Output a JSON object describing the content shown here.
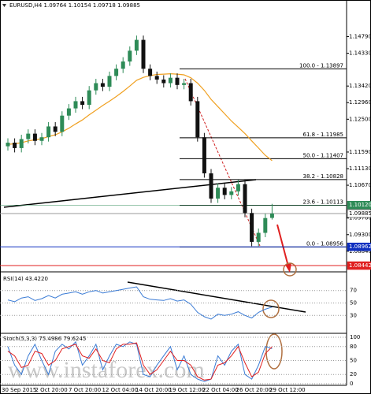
{
  "chart_data": [
    {
      "type": "candlestick",
      "title": "EURUSD,H4 1.09764 1.10154 1.09718 1.09885",
      "up_color": "#2e8b57",
      "down_color": "#111111",
      "open": [
        1.1175,
        1.1185,
        1.117,
        1.1195,
        1.121,
        1.119,
        1.12,
        1.123,
        1.1215,
        1.126,
        1.128,
        1.13,
        1.129,
        1.133,
        1.135,
        1.134,
        1.137,
        1.139,
        1.141,
        1.144,
        1.147,
        1.139,
        1.137,
        1.136,
        1.135,
        1.1365,
        1.1345,
        1.135,
        1.13,
        1.12,
        1.11,
        1.103,
        1.106,
        1.104,
        1.105,
        1.107,
        1.099,
        1.091,
        1.0935,
        1.09764
      ],
      "high": [
        1.1197,
        1.1197,
        1.1207,
        1.1222,
        1.1222,
        1.1212,
        1.1242,
        1.1242,
        1.1272,
        1.1292,
        1.1312,
        1.1312,
        1.1342,
        1.1362,
        1.1362,
        1.1382,
        1.1402,
        1.1422,
        1.1452,
        1.1482,
        1.1482,
        1.1402,
        1.1382,
        1.1372,
        1.1377,
        1.1377,
        1.1362,
        1.1362,
        1.1312,
        1.1212,
        1.1112,
        1.1072,
        1.1072,
        1.1062,
        1.1082,
        1.1082,
        1.1002,
        1.0947,
        1.0988,
        1.10154
      ],
      "low": [
        1.1163,
        1.1158,
        1.1158,
        1.1183,
        1.1178,
        1.1178,
        1.1188,
        1.1203,
        1.1203,
        1.1248,
        1.1268,
        1.1278,
        1.1278,
        1.1318,
        1.1328,
        1.1328,
        1.1358,
        1.1378,
        1.1398,
        1.1428,
        1.1378,
        1.1358,
        1.1348,
        1.1338,
        1.1338,
        1.1333,
        1.1333,
        1.1288,
        1.1188,
        1.1088,
        1.1018,
        1.1018,
        1.1028,
        1.1028,
        1.1038,
        1.0978,
        1.0898,
        1.0898,
        1.0923,
        1.09718
      ],
      "close": [
        1.1185,
        1.117,
        1.1195,
        1.121,
        1.119,
        1.12,
        1.123,
        1.1215,
        1.126,
        1.128,
        1.13,
        1.129,
        1.133,
        1.135,
        1.134,
        1.137,
        1.139,
        1.141,
        1.144,
        1.147,
        1.139,
        1.137,
        1.136,
        1.135,
        1.1365,
        1.1345,
        1.135,
        1.13,
        1.12,
        1.11,
        1.103,
        1.106,
        1.104,
        1.105,
        1.107,
        1.099,
        1.091,
        1.0935,
        1.0976,
        1.09885
      ],
      "series": [
        {
          "color": "#f0a020",
          "values": [
            1.118,
            1.1182,
            1.1185,
            1.119,
            1.1193,
            1.1196,
            1.1202,
            1.1207,
            1.1215,
            1.1225,
            1.1237,
            1.1248,
            1.1262,
            1.1275,
            1.1288,
            1.13,
            1.1313,
            1.1327,
            1.1342,
            1.1358,
            1.1366,
            1.1371,
            1.1374,
            1.1375,
            1.1376,
            1.1375,
            1.1373,
            1.1365,
            1.135,
            1.133,
            1.1305,
            1.1285,
            1.1265,
            1.1245,
            1.1228,
            1.121,
            1.119,
            1.117,
            1.115,
            1.1135
          ]
        }
      ],
      "ylim": [
        1.0829,
        1.1574
      ],
      "yticks": [
        {
          "value": 1.1479,
          "label": "1.14790"
        },
        {
          "value": 1.1433,
          "label": "1.14330"
        },
        {
          "value": 1.1342,
          "label": "1.13420"
        },
        {
          "value": 1.1296,
          "label": "1.12960"
        },
        {
          "value": 1.125,
          "label": "1.12500"
        },
        {
          "value": 1.1159,
          "label": "1.11590"
        },
        {
          "value": 1.1113,
          "label": "1.11130"
        },
        {
          "value": 1.1067,
          "label": "1.10670"
        },
        {
          "value": 1.0976,
          "label": "1.09760"
        },
        {
          "value": 1.093,
          "label": "1.09300"
        },
        {
          "value": 1.0884,
          "label": "1.08840"
        }
      ],
      "fib_levels": [
        {
          "value": 1.13897,
          "label": "100.0 - 1.13897"
        },
        {
          "value": 1.11985,
          "label": "61.8 - 1.11985"
        },
        {
          "value": 1.11407,
          "label": "50.0 - 1.11407"
        },
        {
          "value": 1.10828,
          "label": "38.2 - 1.10828"
        },
        {
          "value": 1.10113,
          "label": "23.6 - 1.10113"
        },
        {
          "value": 1.08956,
          "label": "0.0 - 1.08956"
        }
      ],
      "price_markers": [
        {
          "value": 1.1012,
          "label": "1.10120",
          "color": "#2e8b57"
        },
        {
          "value": 1.09885,
          "label": "1.09885",
          "color": "#ffffff"
        },
        {
          "value": 1.08962,
          "label": "1.08962",
          "color": "#1030c0"
        },
        {
          "value": 1.08442,
          "label": "1.08442",
          "color": "#e02020"
        }
      ]
    },
    {
      "type": "line",
      "title": "RSI(14) 43.4220",
      "color": "#3a7bd5",
      "values": [
        55,
        52,
        58,
        60,
        54,
        57,
        62,
        58,
        64,
        66,
        68,
        64,
        68,
        70,
        66,
        68,
        70,
        72,
        74,
        76,
        60,
        56,
        55,
        54,
        57,
        53,
        55,
        48,
        35,
        28,
        24,
        32,
        30,
        32,
        36,
        30,
        26,
        35,
        40,
        43.422
      ],
      "ylim": [
        0,
        100
      ],
      "yticks": [
        70,
        50,
        30
      ]
    },
    {
      "type": "line",
      "title": "Stoch(5,3,3) 75.4986 79.6245",
      "series": [
        {
          "color": "#3a7bd5",
          "values": [
            80,
            40,
            20,
            60,
            85,
            50,
            20,
            70,
            85,
            75,
            90,
            40,
            60,
            85,
            30,
            60,
            85,
            80,
            90,
            85,
            20,
            15,
            40,
            60,
            80,
            30,
            60,
            20,
            10,
            5,
            10,
            60,
            40,
            70,
            85,
            20,
            10,
            40,
            80,
            75.4986
          ]
        },
        {
          "color": "#e02020",
          "values": [
            70,
            60,
            35,
            40,
            70,
            65,
            40,
            50,
            75,
            80,
            85,
            60,
            55,
            75,
            50,
            45,
            75,
            85,
            85,
            88,
            40,
            20,
            30,
            50,
            70,
            50,
            50,
            40,
            15,
            8,
            10,
            40,
            45,
            60,
            80,
            45,
            15,
            25,
            65,
            79.6245
          ]
        }
      ],
      "ylim": [
        0,
        100
      ],
      "yticks": [
        100,
        80,
        50,
        20,
        0
      ],
      "x_labels": [
        "30 Sep 2015",
        "2 Oct 20:00",
        "7 Oct 20:00",
        "12 Oct 04:00",
        "14 Oct 20:00",
        "19 Oct 12:00",
        "22 Oct 04:00",
        "26 Oct 20:00",
        "29 Oct 12:00"
      ]
    }
  ],
  "watermark": "www.instaforex.com"
}
